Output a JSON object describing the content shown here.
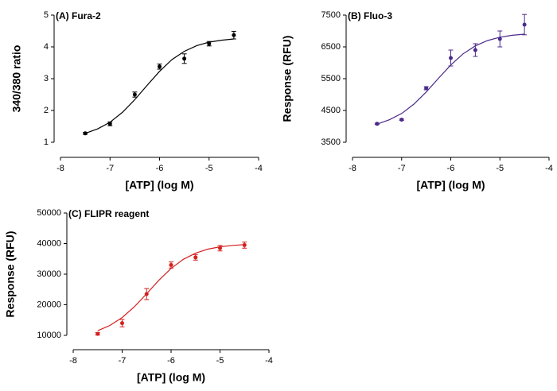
{
  "chart_data": [
    {
      "type": "scatter",
      "title": "(A) Fura-2",
      "xlabel": "[ATP] (log M)",
      "ylabel": "340/380 ratio",
      "color": "#000000",
      "x": [
        -7.5,
        -7,
        -6.5,
        -6,
        -5.5,
        -5,
        -4.5
      ],
      "values": [
        1.28,
        1.58,
        2.5,
        3.38,
        3.63,
        4.1,
        4.37
      ],
      "errors": [
        0.03,
        0.06,
        0.08,
        0.08,
        0.15,
        0.07,
        0.12
      ],
      "fit": {
        "x": [
          -7.5,
          -7.25,
          -7,
          -6.75,
          -6.5,
          -6.25,
          -6,
          -5.75,
          -5.5,
          -5.25,
          -5,
          -4.75,
          -4.5
        ],
        "values": [
          1.28,
          1.42,
          1.63,
          1.94,
          2.34,
          2.79,
          3.23,
          3.6,
          3.86,
          4.04,
          4.15,
          4.21,
          4.25
        ]
      },
      "xlim": [
        -8,
        -4
      ],
      "xticks": [
        -8,
        -7,
        -6,
        -5,
        -4
      ],
      "ylim": [
        1,
        5
      ],
      "yticks": [
        1,
        2,
        3,
        4,
        5
      ]
    },
    {
      "type": "scatter",
      "title": "(B) Fluo-3",
      "xlabel": "[ATP] (log M)",
      "ylabel": "Response (RFU)",
      "color": "#4b2a8a",
      "x": [
        -7.5,
        -7,
        -6.5,
        -6,
        -5.5,
        -5,
        -4.5
      ],
      "values": [
        4080,
        4210,
        5200,
        6150,
        6400,
        6750,
        7200
      ],
      "errors": [
        20,
        20,
        50,
        250,
        200,
        250,
        320
      ],
      "fit": {
        "x": [
          -7.5,
          -7.25,
          -7,
          -6.75,
          -6.5,
          -6.25,
          -6,
          -5.75,
          -5.5,
          -5.25,
          -5,
          -4.75,
          -4.5
        ],
        "values": [
          4071,
          4208,
          4406,
          4699,
          5080,
          5513,
          5931,
          6279,
          6532,
          6700,
          6804,
          6865,
          6901
        ]
      },
      "xlim": [
        -8,
        -4
      ],
      "xticks": [
        -8,
        -7,
        -6,
        -5,
        -4
      ],
      "ylim": [
        3500,
        7500
      ],
      "yticks": [
        3500,
        4500,
        5500,
        6500,
        7500
      ]
    },
    {
      "type": "scatter",
      "title": "(C) FLIPR reagent",
      "xlabel": "[ATP] (log M)",
      "ylabel": "Response (RFU)",
      "color": "#d42020",
      "x": [
        -7.5,
        -7,
        -6.5,
        -6,
        -5.5,
        -5,
        -4.5
      ],
      "values": [
        10500,
        14000,
        23500,
        33000,
        35500,
        38500,
        39500
      ],
      "errors": [
        400,
        1200,
        1800,
        1000,
        900,
        900,
        1000
      ],
      "fit": {
        "x": [
          -7.5,
          -7.25,
          -7,
          -6.75,
          -6.5,
          -6.25,
          -6,
          -5.75,
          -5.5,
          -5.25,
          -5,
          -4.75,
          -4.5
        ],
        "values": [
          11542,
          13247,
          15820,
          19354,
          23601,
          28003,
          31878,
          34854,
          36869,
          38171,
          38946,
          39411,
          39659
        ]
      },
      "xlim": [
        -8,
        -4
      ],
      "xticks": [
        -8,
        -7,
        -6,
        -5,
        -4
      ],
      "ylim": [
        10000,
        50000
      ],
      "yticks": [
        10000,
        20000,
        30000,
        40000,
        50000
      ]
    }
  ]
}
